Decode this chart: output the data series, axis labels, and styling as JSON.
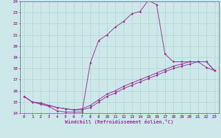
{
  "xlabel": "Windchill (Refroidissement éolien,°C)",
  "background_color": "#cce8e8",
  "grid_color": "#aacccc",
  "line_color": "#993399",
  "xlim": [
    -0.5,
    23.5
  ],
  "ylim": [
    14,
    24
  ],
  "xticks": [
    0,
    1,
    2,
    3,
    4,
    5,
    6,
    7,
    8,
    9,
    10,
    11,
    12,
    13,
    14,
    15,
    16,
    17,
    18,
    19,
    20,
    21,
    22,
    23
  ],
  "yticks": [
    14,
    15,
    16,
    17,
    18,
    19,
    20,
    21,
    22,
    23,
    24
  ],
  "series1_x": [
    0,
    1,
    2,
    3,
    4,
    5,
    6,
    7,
    8,
    9,
    10,
    11,
    12,
    13,
    14,
    15,
    16,
    17,
    18,
    19,
    20,
    21,
    22,
    23
  ],
  "series1_y": [
    15.5,
    15.0,
    14.8,
    14.6,
    14.2,
    14.1,
    14.1,
    14.1,
    18.5,
    20.5,
    21.0,
    21.7,
    22.2,
    22.9,
    23.1,
    24.1,
    23.7,
    19.3,
    18.6,
    18.6,
    18.6,
    18.6,
    18.1,
    17.8
  ],
  "series2_x": [
    0,
    1,
    2,
    3,
    4,
    5,
    6,
    7,
    8,
    9,
    10,
    11,
    12,
    13,
    14,
    15,
    16,
    17,
    18,
    19,
    20,
    21,
    22,
    23
  ],
  "series2_y": [
    15.5,
    15.0,
    14.9,
    14.7,
    14.5,
    14.4,
    14.3,
    14.3,
    14.5,
    15.0,
    15.5,
    15.8,
    16.2,
    16.5,
    16.8,
    17.1,
    17.4,
    17.7,
    18.0,
    18.2,
    18.4,
    18.6,
    18.6,
    17.8
  ],
  "series3_x": [
    0,
    1,
    2,
    3,
    4,
    5,
    6,
    7,
    8,
    9,
    10,
    11,
    12,
    13,
    14,
    15,
    16,
    17,
    18,
    19,
    20,
    21,
    22,
    23
  ],
  "series3_y": [
    15.5,
    15.0,
    14.9,
    14.7,
    14.5,
    14.4,
    14.3,
    14.4,
    14.7,
    15.2,
    15.7,
    16.0,
    16.4,
    16.7,
    17.0,
    17.3,
    17.6,
    17.9,
    18.2,
    18.4,
    18.6,
    18.6,
    18.6,
    17.8
  ],
  "tick_fontsize": 4.5,
  "xlabel_fontsize": 5.0,
  "marker_size": 1.8,
  "line_width": 0.7
}
